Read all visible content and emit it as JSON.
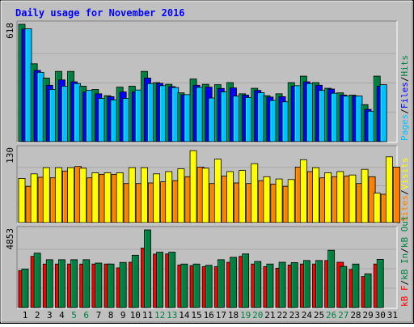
{
  "chart_data": {
    "type": "bar",
    "title": "Daily usage for November 2016",
    "categories": [
      "1",
      "2",
      "3",
      "4",
      "5",
      "6",
      "7",
      "8",
      "9",
      "10",
      "11",
      "12",
      "13",
      "14",
      "15",
      "16",
      "17",
      "18",
      "19",
      "20",
      "21",
      "22",
      "23",
      "24",
      "25",
      "26",
      "27",
      "28",
      "29",
      "30",
      "31"
    ],
    "weekend_days": [
      "5",
      "6",
      "12",
      "13",
      "19",
      "20",
      "26",
      "27"
    ],
    "panels": [
      {
        "name": "hits-files-pages",
        "max_label": "618",
        "ylim": [
          0,
          618
        ],
        "legend": [
          {
            "label": "Pages",
            "color": "#00C0FF"
          },
          {
            "label": "/",
            "color": "#000000"
          },
          {
            "label": "Files",
            "color": "#0000FF"
          },
          {
            "label": "/",
            "color": "#000000"
          },
          {
            "label": "Hits",
            "color": "#008040"
          }
        ],
        "series": [
          {
            "name": "Hits",
            "color": "#008040",
            "values": [
              618,
              410,
              335,
              370,
              370,
              292,
              275,
              242,
              287,
              292,
              370,
              311,
              302,
              257,
              330,
              302,
              300,
              311,
              252,
              281,
              242,
              252,
              311,
              345,
              311,
              281,
              257,
              245,
              195,
              345,
              null
            ]
          },
          {
            "name": "Files",
            "color": "#0000FF",
            "values": [
              593,
              375,
              297,
              325,
              315,
              262,
              252,
              237,
              262,
              262,
              335,
              307,
              290,
              247,
              297,
              287,
              280,
              283,
              245,
              270,
              235,
              237,
              292,
              315,
              297,
              277,
              245,
              240,
              170,
              292,
              null
            ]
          },
          {
            "name": "Pages",
            "color": "#00C0FF",
            "values": [
              594,
              365,
              275,
              292,
              306,
              270,
              228,
              220,
              228,
              272,
              306,
              295,
              285,
              248,
              286,
              230,
              262,
              240,
              233,
              258,
              217,
              210,
              295,
              306,
              270,
              255,
              240,
              240,
              160,
              300,
              null
            ]
          }
        ]
      },
      {
        "name": "visits-sites",
        "max_label": "130",
        "ylim": [
          0,
          130
        ],
        "legend": [
          {
            "label": "Sites",
            "color": "#FF8000"
          },
          {
            "label": "/",
            "color": "#000000"
          },
          {
            "label": "Visits",
            "color": "#FFFF00"
          }
        ],
        "series": [
          {
            "name": "Visits",
            "color": "#FFFF00",
            "values": [
              78,
              86,
              97,
              97,
              97,
              96,
              88,
              88,
              88,
              97,
              97,
              86,
              90,
              95,
              127,
              96,
              112,
              90,
              92,
              104,
              81,
              77,
              76,
              111,
              97,
              88,
              90,
              84,
              94,
              52,
              116
            ]
          },
          {
            "name": "Sites",
            "color": "#FF8000",
            "values": [
              64,
              80,
              79,
              91,
              99,
              79,
              85,
              85,
              69,
              69,
              70,
              72,
              74,
              81,
              98,
              69,
              82,
              70,
              69,
              74,
              68,
              64,
              98,
              90,
              79,
              81,
              82,
              69,
              81,
              50,
              98
            ]
          }
        ]
      },
      {
        "name": "kbin-kbout-kbf",
        "max_label": "4853",
        "ylim": [
          0,
          4853
        ],
        "legend": [
          {
            "label": "kB F",
            "color": "#FF0000"
          },
          {
            "label": "/",
            "color": "#000000"
          },
          {
            "label": "kB In",
            "color": "#008040"
          },
          {
            "label": "/",
            "color": "#000000"
          },
          {
            "label": "kB Out",
            "color": "#008040"
          }
        ],
        "series": [
          {
            "name": "kB F",
            "color": "#FF0000",
            "values": [
              2310,
              3200,
              2720,
              2720,
              2720,
              2720,
              2720,
              2720,
              2480,
              2830,
              3720,
              3340,
              3350,
              2660,
              2620,
              2560,
              2560,
              2830,
              3200,
              2720,
              2560,
              2460,
              2660,
              2720,
              2720,
              2940,
              2830,
              2380,
              1940,
              2720,
              null
            ]
          },
          {
            "name": "kB Out",
            "color": "#008040",
            "values": [
              2410,
              3400,
              2990,
              2990,
              2990,
              2990,
              2780,
              2720,
              2820,
              3270,
              4853,
              3460,
              3460,
              2720,
              2720,
              2640,
              2990,
              3140,
              3350,
              2880,
              2720,
              2830,
              2810,
              2940,
              2940,
              3580,
              2570,
              2720,
              2110,
              3010,
              null
            ]
          }
        ]
      }
    ]
  }
}
